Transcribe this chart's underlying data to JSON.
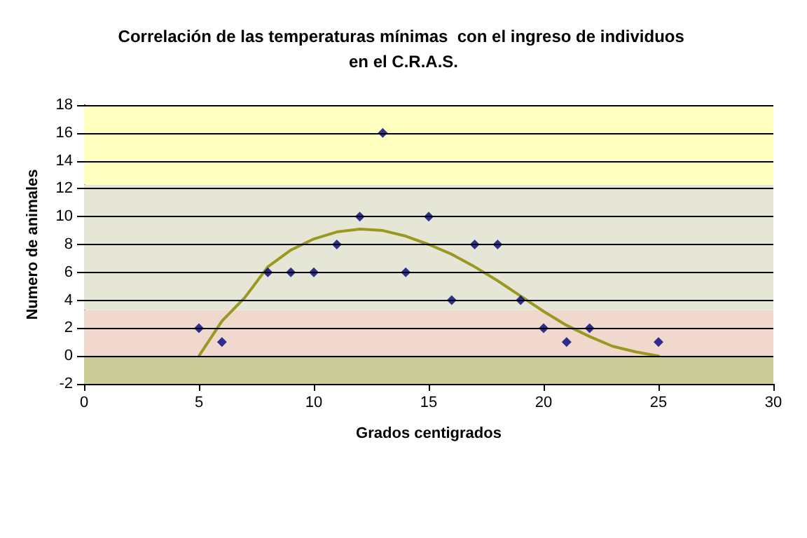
{
  "chart_data": {
    "type": "scatter",
    "title": "Correlación de las temperaturas mínimas  con el ingreso de individuos en el C.R.A.S.",
    "xlabel": "Grados centigrados",
    "ylabel": "Numero de animales",
    "series": [
      {
        "color": "#000080",
        "marker": "diamond",
        "x": [
          5,
          6,
          8,
          9,
          10,
          11,
          12,
          13,
          14,
          15,
          16,
          17,
          18,
          19,
          20,
          21,
          22,
          25
        ],
        "values": [
          2,
          1,
          6,
          6,
          6,
          8,
          10,
          16,
          6,
          10,
          4,
          8,
          8,
          4,
          2,
          1,
          2,
          1
        ]
      },
      {
        "type": "line",
        "color": "#999922",
        "marker": "none",
        "line_style": "solid",
        "x": [
          5,
          6,
          7,
          8,
          9,
          10,
          11,
          12,
          13,
          14,
          15,
          16,
          17,
          18,
          19,
          20,
          21,
          22,
          23,
          24,
          25
        ],
        "values": [
          0,
          2.5,
          4.2,
          6.4,
          7.6,
          8.4,
          8.9,
          9.1,
          9.0,
          8.6,
          8.0,
          7.3,
          6.4,
          5.4,
          4.3,
          3.2,
          2.2,
          1.4,
          0.7,
          0.3,
          0
        ]
      }
    ],
    "bands": [
      {
        "axis": "y",
        "from": -2,
        "to": 0,
        "color": "#cccc99"
      },
      {
        "axis": "y",
        "from": 0,
        "to": 3.3,
        "color": "#f0d8cc"
      },
      {
        "axis": "y",
        "from": 3.3,
        "to": 12.3,
        "color": "#e6e6d6"
      },
      {
        "axis": "y",
        "from": 12.3,
        "to": 18,
        "color": "#ffffc0"
      }
    ],
    "xlim": [
      0,
      30
    ],
    "xticks": [
      0,
      5,
      10,
      15,
      20,
      25,
      30
    ],
    "ylim": [
      -2,
      18
    ],
    "yticks": [
      -2,
      0,
      2,
      4,
      6,
      8,
      10,
      12,
      14,
      16,
      18
    ],
    "grid": "y"
  }
}
